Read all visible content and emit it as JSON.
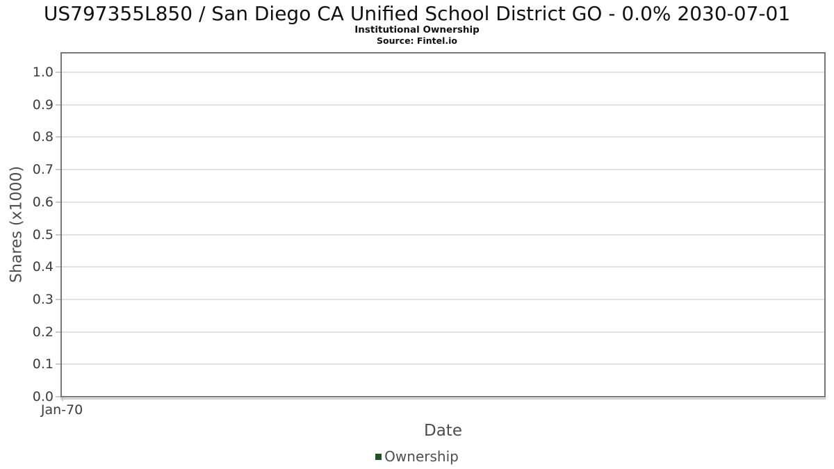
{
  "chart_data": {
    "type": "line",
    "title": "US797355L850 / San Diego CA Unified School District GO - 0.0% 2030-07-01",
    "subtitle": "Institutional Ownership",
    "source": "Source: Fintel.io",
    "xlabel": "Date",
    "ylabel": "Shares (x1000)",
    "x_tick_labels": [
      "Jan-70"
    ],
    "y_tick_labels": [
      "0.0",
      "0.1",
      "0.2",
      "0.3",
      "0.4",
      "0.5",
      "0.6",
      "0.7",
      "0.8",
      "0.9",
      "1.0"
    ],
    "ylim": [
      0.0,
      1.05
    ],
    "grid": true,
    "legend_position": "bottom",
    "legend": [
      {
        "name": "Ownership",
        "marker_color": "#1e5329"
      }
    ],
    "series": [
      {
        "name": "Ownership",
        "x": [],
        "values": []
      }
    ]
  },
  "colors": {
    "legend_marker": "#1e5329",
    "grid": "#e3e3e3",
    "plot_border": "#777777",
    "tick": "#c9c9c9",
    "title_text": "#111111",
    "axis_text": "#3c3c3c",
    "label_text": "#4d4d4d",
    "background": "#ffffff"
  }
}
